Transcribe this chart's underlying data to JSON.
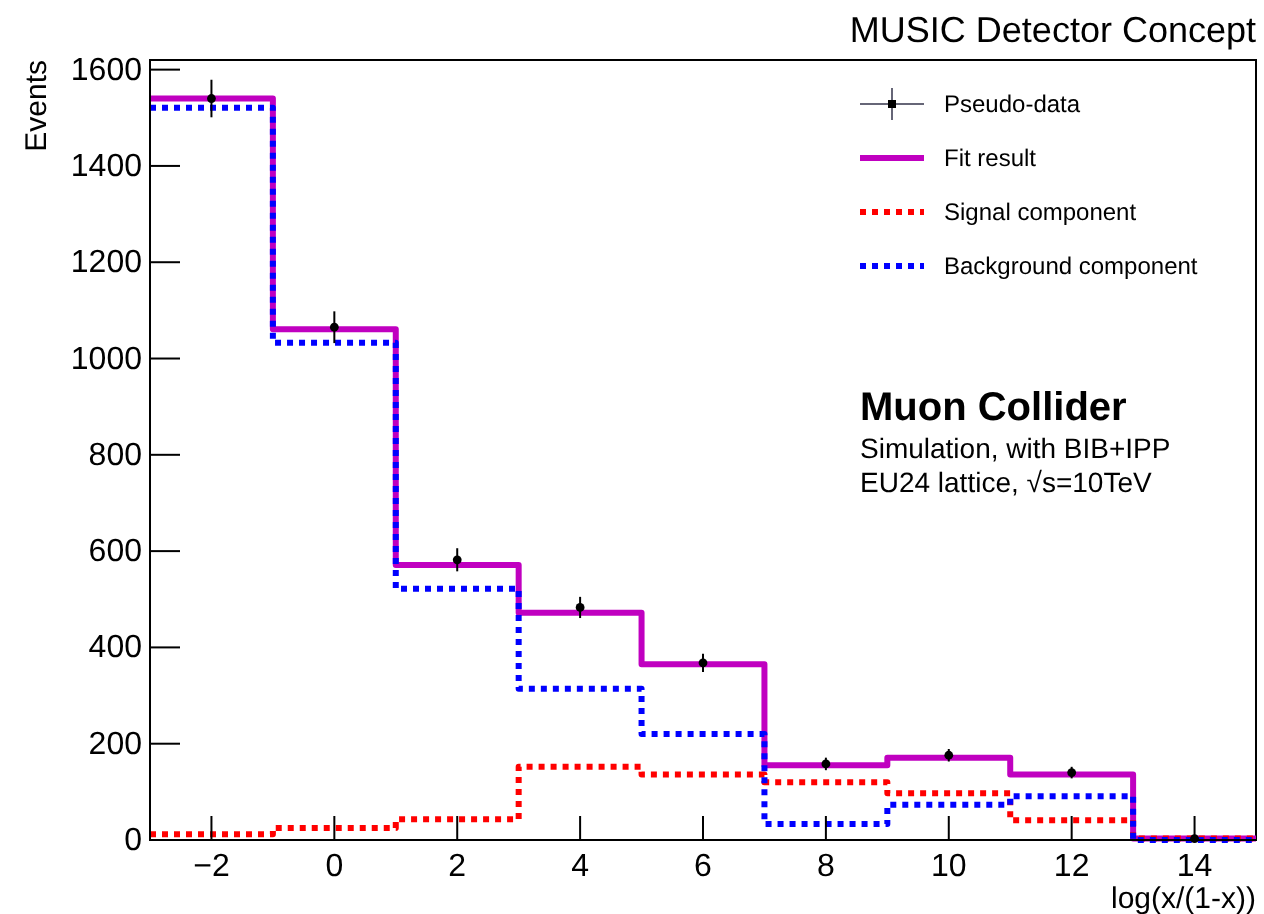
{
  "chart_data": {
    "type": "step",
    "title": "MUSIC Detector Concept",
    "xlabel": "log(x/(1-x))",
    "ylabel": "Events",
    "series": [
      {
        "name": "Pseudo-data",
        "type": "scatter",
        "color": "#000000",
        "x": [
          -2,
          0,
          2,
          4,
          6,
          8,
          10,
          12,
          14
        ],
        "values": [
          1540,
          1065,
          582,
          483,
          368,
          158,
          176,
          140,
          3
        ],
        "errors": [
          39,
          33,
          24,
          22,
          19,
          13,
          13,
          12,
          2
        ]
      },
      {
        "name": "Fit result",
        "color": "#c000c0",
        "line_style": "solid",
        "x": [
          -3,
          -1,
          1,
          3,
          5,
          7,
          9,
          11,
          13,
          15
        ],
        "values": [
          1540,
          1061,
          571,
          472,
          365,
          155,
          171,
          136,
          3,
          3
        ]
      },
      {
        "name": "Signal component",
        "color": "#ff0000",
        "line_style": "dotted",
        "x": [
          -3,
          -1,
          1,
          3,
          5,
          7,
          9,
          11,
          13,
          15
        ],
        "values": [
          12,
          25,
          43,
          152,
          136,
          120,
          97,
          41,
          3,
          3
        ]
      },
      {
        "name": "Background component",
        "color": "#0000ff",
        "line_style": "dotted",
        "x": [
          -3,
          -1,
          1,
          3,
          5,
          7,
          9,
          11,
          13,
          15
        ],
        "values": [
          1521,
          1033,
          522,
          314,
          220,
          33,
          73,
          91,
          0,
          0
        ]
      }
    ],
    "xlim": [
      -3,
      15
    ],
    "xticks": [
      -2,
      0,
      2,
      4,
      6,
      8,
      10,
      12,
      14
    ],
    "ylim": [
      0,
      1620
    ],
    "yticks": [
      0,
      200,
      400,
      600,
      800,
      1000,
      1200,
      1400,
      1600
    ],
    "legend": "top right",
    "annotations": [
      "Muon Collider",
      "Simulation, with BIB+IPP",
      "EU24 lattice, √s=10TeV"
    ]
  }
}
